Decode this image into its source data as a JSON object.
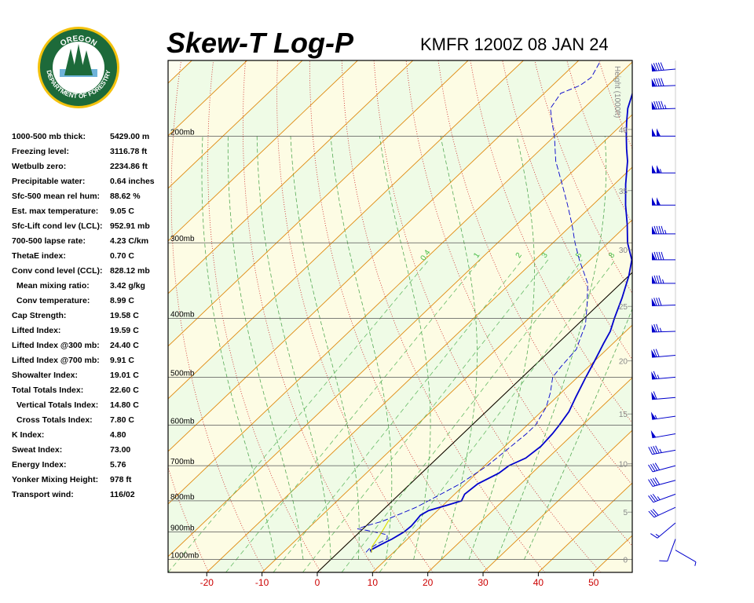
{
  "logo": {
    "top_text": "OREGON",
    "bottom_text": "DEPARTMENT OF FORESTRY"
  },
  "header": {
    "title": "Skew-T Log-P",
    "station": "KMFR 1200Z 08 JAN 24"
  },
  "indices": [
    {
      "label": "1000-500 mb thick:",
      "value": "5429.00 m",
      "indent": false
    },
    {
      "label": "Freezing level:",
      "value": "3116.78 ft",
      "indent": false
    },
    {
      "label": "Wetbulb zero:",
      "value": "2234.86 ft",
      "indent": false
    },
    {
      "label": "Precipitable water:",
      "value": "0.64 inches",
      "indent": false
    },
    {
      "label": "Sfc-500 mean rel hum:",
      "value": "88.62 %",
      "indent": false
    },
    {
      "label": "Est. max temperature:",
      "value": "9.05 C",
      "indent": false
    },
    {
      "label": "Sfc-Lift cond lev (LCL):",
      "value": "952.91 mb",
      "indent": false
    },
    {
      "label": "700-500 lapse rate:",
      "value": "4.23 C/km",
      "indent": false
    },
    {
      "label": "ThetaE index:",
      "value": "0.70 C",
      "indent": false
    },
    {
      "label": "Conv cond level (CCL):",
      "value": "828.12 mb",
      "indent": false
    },
    {
      "label": "Mean mixing ratio:",
      "value": "3.42 g/kg",
      "indent": true
    },
    {
      "label": "Conv temperature:",
      "value": "8.99 C",
      "indent": true
    },
    {
      "label": "Cap Strength:",
      "value": "19.58 C",
      "indent": false
    },
    {
      "label": "Lifted Index:",
      "value": "19.59 C",
      "indent": false
    },
    {
      "label": "Lifted Index @300 mb:",
      "value": "24.40 C",
      "indent": false
    },
    {
      "label": "Lifted Index @700 mb:",
      "value": "9.91 C",
      "indent": false
    },
    {
      "label": "Showalter Index:",
      "value": "19.01 C",
      "indent": false
    },
    {
      "label": "Total Totals Index:",
      "value": "22.60 C",
      "indent": false
    },
    {
      "label": "Vertical Totals Index:",
      "value": "14.80 C",
      "indent": true
    },
    {
      "label": "Cross Totals Index:",
      "value": "7.80 C",
      "indent": true
    },
    {
      "label": "K Index:",
      "value": "4.80",
      "indent": false
    },
    {
      "label": "Sweat Index:",
      "value": "73.00",
      "indent": false
    },
    {
      "label": "Energy Index:",
      "value": "5.76",
      "indent": false
    },
    {
      "label": "Yonker Mixing Height:",
      "value": "978 ft",
      "indent": false
    },
    {
      "label": "Transport wind:",
      "value": "116/02",
      "indent": false
    }
  ],
  "chart_data": {
    "type": "line",
    "title": "Skew-T Log-P",
    "x_ticks": [
      -20,
      -10,
      0,
      10,
      20,
      30,
      40,
      50
    ],
    "xlim": [
      -27,
      57
    ],
    "pressure_range_mb": [
      1050,
      150
    ],
    "pressure_levels": [
      {
        "p": 1000,
        "label": "1000mb"
      },
      {
        "p": 900,
        "label": "900mb"
      },
      {
        "p": 800,
        "label": "800mb"
      },
      {
        "p": 700,
        "label": "700mb"
      },
      {
        "p": 600,
        "label": "600mb"
      },
      {
        "p": 500,
        "label": "500mb"
      },
      {
        "p": 400,
        "label": "400mb"
      },
      {
        "p": 300,
        "label": "300mb"
      },
      {
        "p": 200,
        "label": "200mb"
      }
    ],
    "height_axis_label": "Height (1000ft)",
    "height_ticks": [
      {
        "p": 1000,
        "label": "0"
      },
      {
        "p": 835,
        "label": "5"
      },
      {
        "p": 695,
        "label": "10"
      },
      {
        "p": 575,
        "label": "15"
      },
      {
        "p": 470,
        "label": "20"
      },
      {
        "p": 382,
        "label": "25"
      },
      {
        "p": 308,
        "label": "30"
      },
      {
        "p": 246,
        "label": "35"
      },
      {
        "p": 195,
        "label": "40"
      },
      {
        "p": 153,
        "label": "45"
      },
      {
        "p": 120,
        "label": "50"
      }
    ],
    "mixing_ratio_labels": [
      "0.4",
      "1",
      "2",
      "3",
      "5",
      "8"
    ],
    "series": [
      {
        "role": "temperature",
        "color": "#0000cc",
        "line": "solid",
        "points": [
          [
            973,
            6.0
          ],
          [
            965,
            5.4
          ],
          [
            945,
            6.2
          ],
          [
            925,
            7.2
          ],
          [
            900,
            8.0
          ],
          [
            880,
            8.2
          ],
          [
            860,
            8.0
          ],
          [
            845,
            7.8
          ],
          [
            830,
            8.4
          ],
          [
            815,
            10.5
          ],
          [
            800,
            12.5
          ],
          [
            780,
            11.8
          ],
          [
            750,
            12.2
          ],
          [
            720,
            14.0
          ],
          [
            700,
            14.4
          ],
          [
            680,
            16.0
          ],
          [
            650,
            16.5
          ],
          [
            620,
            16.2
          ],
          [
            600,
            15.8
          ],
          [
            570,
            15.0
          ],
          [
            540,
            13.5
          ],
          [
            500,
            11.5
          ],
          [
            470,
            10.0
          ],
          [
            440,
            8.3
          ],
          [
            420,
            7.2
          ],
          [
            400,
            5.5
          ],
          [
            370,
            3.0
          ],
          [
            340,
            0.0
          ],
          [
            320,
            -2.5
          ],
          [
            300,
            -6.5
          ],
          [
            280,
            -10.0
          ],
          [
            260,
            -14.0
          ],
          [
            240,
            -18.0
          ],
          [
            220,
            -22.0
          ],
          [
            210,
            -24.5
          ],
          [
            200,
            -27.0
          ],
          [
            190,
            -29.5
          ],
          [
            180,
            -32.0
          ],
          [
            170,
            -34.0
          ],
          [
            160,
            -35.5
          ],
          [
            150,
            -37.0
          ]
        ]
      },
      {
        "role": "dewpoint",
        "color": "#0000cc",
        "line": "dashed",
        "points": [
          [
            973,
            5.0
          ],
          [
            960,
            4.9
          ],
          [
            940,
            5.5
          ],
          [
            925,
            6.3
          ],
          [
            910,
            5.5
          ],
          [
            895,
            1.0
          ],
          [
            890,
            -1.0
          ],
          [
            880,
            0.0
          ],
          [
            865,
            2.0
          ],
          [
            850,
            3.2
          ],
          [
            820,
            5.5
          ],
          [
            800,
            6.5
          ],
          [
            750,
            9.0
          ],
          [
            700,
            10.5
          ],
          [
            660,
            11.0
          ],
          [
            620,
            11.5
          ],
          [
            600,
            11.5
          ],
          [
            560,
            10.0
          ],
          [
            530,
            8.0
          ],
          [
            500,
            5.5
          ],
          [
            480,
            5.0
          ],
          [
            450,
            4.5
          ],
          [
            430,
            3.0
          ],
          [
            410,
            1.5
          ],
          [
            380,
            -2.0
          ],
          [
            350,
            -6.0
          ],
          [
            320,
            -12.0
          ],
          [
            300,
            -16.0
          ],
          [
            280,
            -20.0
          ],
          [
            260,
            -24.5
          ],
          [
            240,
            -29.5
          ],
          [
            220,
            -35.0
          ],
          [
            200,
            -40.0
          ],
          [
            190,
            -43.0
          ],
          [
            180,
            -46.0
          ],
          [
            170,
            -47.0
          ],
          [
            165,
            -45.0
          ],
          [
            160,
            -44.5
          ],
          [
            150,
            -46.0
          ]
        ]
      }
    ],
    "wind_barbs": {
      "color": "#0000cc",
      "levels": [
        {
          "p": 965,
          "dir": 120,
          "kt": 5
        },
        {
          "p": 925,
          "dir": 200,
          "kt": 10
        },
        {
          "p": 870,
          "dir": 230,
          "kt": 15
        },
        {
          "p": 820,
          "dir": 245,
          "kt": 30
        },
        {
          "p": 780,
          "dir": 250,
          "kt": 35
        },
        {
          "p": 740,
          "dir": 255,
          "kt": 40
        },
        {
          "p": 700,
          "dir": 255,
          "kt": 40
        },
        {
          "p": 660,
          "dir": 260,
          "kt": 45
        },
        {
          "p": 620,
          "dir": 260,
          "kt": 50
        },
        {
          "p": 580,
          "dir": 262,
          "kt": 55
        },
        {
          "p": 540,
          "dir": 265,
          "kt": 60
        },
        {
          "p": 500,
          "dir": 265,
          "kt": 65
        },
        {
          "p": 460,
          "dir": 265,
          "kt": 70
        },
        {
          "p": 420,
          "dir": 268,
          "kt": 75
        },
        {
          "p": 380,
          "dir": 268,
          "kt": 80
        },
        {
          "p": 350,
          "dir": 270,
          "kt": 85
        },
        {
          "p": 320,
          "dir": 270,
          "kt": 90
        },
        {
          "p": 290,
          "dir": 270,
          "kt": 95
        },
        {
          "p": 260,
          "dir": 270,
          "kt": 100
        },
        {
          "p": 230,
          "dir": 270,
          "kt": 105
        },
        {
          "p": 200,
          "dir": 270,
          "kt": 100
        },
        {
          "p": 180,
          "dir": 268,
          "kt": 95
        },
        {
          "p": 165,
          "dir": 268,
          "kt": 90
        },
        {
          "p": 155,
          "dir": 265,
          "kt": 90
        }
      ]
    },
    "grid": true
  }
}
